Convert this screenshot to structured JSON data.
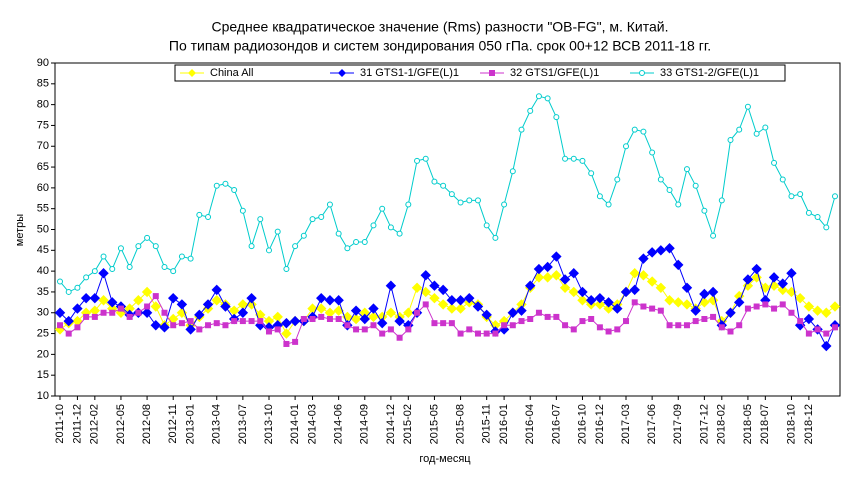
{
  "chart_data": {
    "type": "line",
    "title": "Среднее квадратическое значение (Rms) разности \"OB-FG\", м. Китай.",
    "subtitle": "По типам радиозондов и систем зондирования 050 гПа. срок 00+12 ВСВ 2011-18 гг.",
    "x_label": "год-месяц",
    "y_label": "метры",
    "categories": [
      "2011-10",
      null,
      "2011-12",
      null,
      "2012-02",
      null,
      null,
      "2012-05",
      null,
      null,
      "2012-08",
      null,
      null,
      "2012-11",
      null,
      "2013-01",
      null,
      null,
      "2013-04",
      null,
      null,
      "2013-07",
      null,
      null,
      "2013-10",
      null,
      null,
      "2014-01",
      null,
      "2014-03",
      null,
      null,
      "2014-06",
      null,
      null,
      "2014-09",
      null,
      null,
      "2014-12",
      null,
      "2015-02",
      null,
      null,
      "2015-05",
      null,
      null,
      "2015-08",
      null,
      null,
      "2015-11",
      null,
      "2016-01",
      null,
      null,
      "2016-04",
      null,
      null,
      "2016-07",
      null,
      null,
      "2016-10",
      null,
      "2016-12",
      null,
      null,
      "2017-03",
      null,
      null,
      "2017-06",
      null,
      null,
      "2017-09",
      null,
      null,
      "2017-12",
      null,
      "2018-02",
      null,
      null,
      "2018-05",
      null,
      "2018-07",
      null,
      null,
      "2018-10",
      null,
      "2018-12",
      null,
      null,
      null
    ],
    "series": [
      {
        "name": "China All",
        "color": "#ffff00",
        "marker": "diamond",
        "values": [
          26,
          27.5,
          28,
          30,
          30.5,
          33,
          31,
          30,
          31,
          33,
          35,
          31.5,
          27,
          28.5,
          30,
          27,
          29,
          31,
          33,
          32,
          30.5,
          32,
          32,
          29.5,
          28,
          29,
          25,
          28,
          28,
          31,
          31,
          30,
          30.5,
          29,
          28.5,
          30,
          29,
          29,
          30,
          29,
          30,
          36,
          35,
          33.5,
          32,
          31,
          31,
          32.5,
          32,
          29,
          27,
          28,
          30,
          32,
          36,
          38.5,
          38.5,
          39,
          36,
          35,
          33,
          32,
          32,
          31,
          32,
          35,
          39.5,
          39,
          37.5,
          36,
          33,
          32.5,
          32,
          31,
          32.5,
          33,
          28,
          30,
          34,
          36.5,
          38.5,
          36,
          36.5,
          35.5,
          35,
          33.5,
          31.5,
          30.5,
          30,
          31.5
        ]
      },
      {
        "name": "31 GTS1-1/GFE(L)1",
        "color": "#0000ff",
        "marker": "diamond",
        "values": [
          30,
          28,
          31,
          33.5,
          33.5,
          39.5,
          32.5,
          31.5,
          29.5,
          30,
          30,
          27,
          26.5,
          33.5,
          32,
          26,
          29.5,
          32,
          35.5,
          31.5,
          28.5,
          30,
          33.5,
          27,
          26.5,
          27,
          27.5,
          28,
          28,
          29,
          33.5,
          33,
          33,
          27,
          30.5,
          28.5,
          31,
          27.5,
          36.5,
          28,
          27,
          30,
          39,
          36.5,
          35.5,
          33,
          33,
          33.5,
          31.5,
          29.5,
          25.5,
          26,
          30,
          30.5,
          36.5,
          40.5,
          41,
          43.5,
          38,
          39.5,
          35,
          33,
          33.5,
          32.5,
          31,
          35,
          35.5,
          43,
          44.5,
          45,
          45.5,
          41.5,
          36,
          30.5,
          34.5,
          35,
          27,
          30,
          32.5,
          38,
          40.5,
          33,
          38.5,
          37,
          39.5,
          27,
          28.5,
          26,
          22,
          27
        ]
      },
      {
        "name": "32 GTS1/GFE(L)1",
        "color": "#cc33cc",
        "marker": "square",
        "values": [
          27,
          25,
          26.5,
          29,
          29,
          30,
          30,
          31,
          29,
          30,
          31.5,
          34,
          30,
          27,
          27.5,
          28,
          26,
          27,
          27.5,
          27,
          28,
          28,
          28,
          28,
          25.5,
          26,
          22.5,
          23,
          28.5,
          28.5,
          29,
          28.5,
          28.5,
          27,
          26,
          26,
          27,
          25,
          26,
          24,
          26,
          30,
          32,
          27.5,
          27.5,
          27.5,
          25,
          26,
          25,
          25,
          25,
          27,
          27,
          28,
          28.5,
          30,
          29,
          29,
          27,
          26,
          28,
          28.5,
          26.5,
          25.5,
          26,
          28,
          32.5,
          31.5,
          31,
          30.5,
          27,
          27,
          27,
          28,
          28.5,
          29,
          26.5,
          25.5,
          27,
          31,
          31.5,
          32,
          31,
          32,
          30,
          28,
          25,
          26,
          25,
          26.5
        ]
      },
      {
        "name": "33 GTS1-2/GFE(L)1",
        "color": "#00cccc",
        "marker": "circle",
        "values": [
          37.5,
          35,
          36,
          38.5,
          40,
          43.5,
          40.5,
          45.5,
          41,
          46,
          48,
          46,
          41,
          40,
          43.5,
          43,
          53.5,
          53,
          60.5,
          61,
          59.5,
          54.5,
          46,
          52.5,
          45,
          49.5,
          40.5,
          46,
          48.5,
          52.5,
          53,
          56,
          49,
          45.5,
          47,
          47,
          51,
          55,
          50.5,
          49,
          56,
          66.5,
          67,
          61.5,
          60.5,
          58.5,
          56.5,
          57,
          57,
          51,
          48,
          56,
          64,
          74,
          78.5,
          82,
          81.5,
          77,
          67,
          67,
          66.5,
          63.5,
          58,
          56,
          62,
          70,
          74,
          73.5,
          68.5,
          62,
          59.5,
          56,
          64.5,
          60.5,
          54.5,
          48.5,
          57,
          71.5,
          74,
          79.5,
          73,
          74.5,
          66,
          62,
          58,
          58.5,
          54,
          53,
          50.5,
          58
        ]
      }
    ],
    "ylim": [
      10,
      90
    ],
    "yticks": [
      10,
      15,
      20,
      25,
      30,
      35,
      40,
      45,
      50,
      55,
      60,
      65,
      70,
      75,
      80,
      85,
      90
    ],
    "grid": false,
    "legend": "top"
  }
}
